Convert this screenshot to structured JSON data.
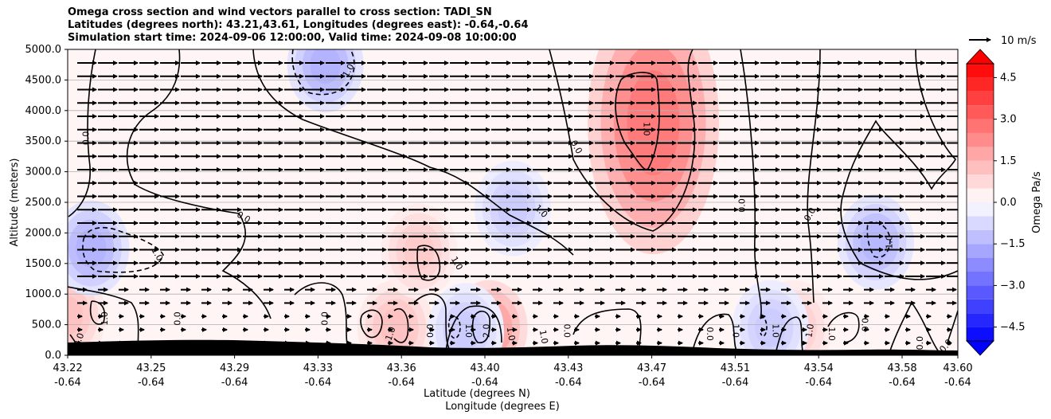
{
  "title_lines": [
    "Omega cross section and wind vectors parallel to cross section: TADI_SN",
    "Latitudes (degrees north): 43.21,43.61, Longitudes (degrees east): -0.64,-0.64",
    "Simulation start time: 2024-09-06 12:00:00, Valid time: 2024-09-08 10:00:00"
  ],
  "chart_data": {
    "type": "heatmap",
    "ylabel": "Altitude (meters)",
    "xlabel_line1": "Latitude (degrees N)",
    "xlabel_line2": "Longitude (degrees E)",
    "ylim": [
      0,
      5000
    ],
    "y_ticks": [
      "0.0",
      "500.0",
      "1000.0",
      "1500.0",
      "2000.0",
      "2500.0",
      "3000.0",
      "3500.0",
      "4000.0",
      "4500.0",
      "5000.0"
    ],
    "y_tick_values": [
      0,
      500,
      1000,
      1500,
      2000,
      2500,
      3000,
      3500,
      4000,
      4500,
      5000
    ],
    "x_ticks": [
      {
        "lat": "43.22",
        "lon": "-0.64"
      },
      {
        "lat": "43.25",
        "lon": "-0.64"
      },
      {
        "lat": "43.29",
        "lon": "-0.64"
      },
      {
        "lat": "43.33",
        "lon": "-0.64"
      },
      {
        "lat": "43.36",
        "lon": "-0.64"
      },
      {
        "lat": "43.40",
        "lon": "-0.64"
      },
      {
        "lat": "43.43",
        "lon": "-0.64"
      },
      {
        "lat": "43.47",
        "lon": "-0.64"
      },
      {
        "lat": "43.51",
        "lon": "-0.64"
      },
      {
        "lat": "43.54",
        "lon": "-0.64"
      },
      {
        "lat": "43.58",
        "lon": "-0.64"
      },
      {
        "lat": "43.60",
        "lon": "-0.64"
      }
    ],
    "grid": true,
    "colorbar": {
      "label": "Omega Pa/s",
      "ticks": [
        "4.5",
        "3.0",
        "1.5",
        "0.0",
        "−1.5",
        "−3.0",
        "−4.5"
      ],
      "tick_values": [
        4.5,
        3.0,
        1.5,
        0.0,
        -1.5,
        -3.0,
        -4.5
      ],
      "range": [
        -5,
        5
      ],
      "extend": "both",
      "positive_color": "#ff0000",
      "negative_color": "#0000ff"
    },
    "vector_key": {
      "label": "10 m/s"
    },
    "omega_features": [
      {
        "kind": "positive",
        "x_lat": 43.47,
        "alt": 3800,
        "peak": 2.6
      },
      {
        "kind": "positive",
        "x_lat": 43.4,
        "alt": 450,
        "peak": 2.0
      },
      {
        "kind": "positive",
        "x_lat": 43.36,
        "alt": 450,
        "peak": 1.2
      },
      {
        "kind": "positive",
        "x_lat": 43.22,
        "alt": 650,
        "peak": 1.2
      },
      {
        "kind": "positive",
        "x_lat": 43.37,
        "alt": 1700,
        "peak": 1.0
      },
      {
        "kind": "positive",
        "x_lat": 43.53,
        "alt": 450,
        "peak": 1.0
      },
      {
        "kind": "negative",
        "x_lat": 43.33,
        "alt": 4750,
        "peak": -1.5
      },
      {
        "kind": "negative",
        "x_lat": 43.23,
        "alt": 1750,
        "peak": -1.5
      },
      {
        "kind": "negative",
        "x_lat": 43.565,
        "alt": 1850,
        "peak": -1.4
      },
      {
        "kind": "negative",
        "x_lat": 43.41,
        "alt": 2400,
        "peak": -1.0
      },
      {
        "kind": "negative",
        "x_lat": 43.39,
        "alt": 400,
        "peak": -1.0
      },
      {
        "kind": "negative",
        "x_lat": 43.52,
        "alt": 450,
        "peak": -1.0
      }
    ],
    "contour_labels": [
      {
        "text": "0.0",
        "x_lat": 43.228,
        "alt": 3550,
        "angle": -90
      },
      {
        "text": "1.0",
        "x_lat": 43.34,
        "alt": 4650,
        "angle": -60
      },
      {
        "text": "0.0",
        "x_lat": 43.295,
        "alt": 2250,
        "angle": 30
      },
      {
        "text": "1.0",
        "x_lat": 43.258,
        "alt": 1650,
        "angle": 60
      },
      {
        "text": "1.0",
        "x_lat": 43.236,
        "alt": 600,
        "angle": -90
      },
      {
        "text": "0.0",
        "x_lat": 43.267,
        "alt": 600,
        "angle": -90
      },
      {
        "text": "0.0",
        "x_lat": 43.225,
        "alt": 250,
        "angle": -70
      },
      {
        "text": "0.0",
        "x_lat": 43.437,
        "alt": 3400,
        "angle": 60
      },
      {
        "text": "1.0",
        "x_lat": 43.422,
        "alt": 2350,
        "angle": 45
      },
      {
        "text": "1.0",
        "x_lat": 43.467,
        "alt": 3700,
        "angle": 90
      },
      {
        "text": "1.0",
        "x_lat": 43.386,
        "alt": 1500,
        "angle": 60
      },
      {
        "text": "0.0",
        "x_lat": 43.33,
        "alt": 600,
        "angle": -90
      },
      {
        "text": "1.0",
        "x_lat": 43.358,
        "alt": 350,
        "angle": -70
      },
      {
        "text": "0.0",
        "x_lat": 43.375,
        "alt": 400,
        "angle": -90
      },
      {
        "text": "2.0",
        "x_lat": 43.399,
        "alt": 400,
        "angle": -90
      },
      {
        "text": "1.0",
        "x_lat": 43.409,
        "alt": 350,
        "angle": 80
      },
      {
        "text": "1.0",
        "x_lat": 43.423,
        "alt": 300,
        "angle": 80
      },
      {
        "text": "1.0",
        "x_lat": 43.391,
        "alt": 400,
        "angle": 90
      },
      {
        "text": "0.0",
        "x_lat": 43.433,
        "alt": 400,
        "angle": 90
      },
      {
        "text": "0.0",
        "x_lat": 43.494,
        "alt": 350,
        "angle": 90
      },
      {
        "text": "1.0",
        "x_lat": 43.505,
        "alt": 400,
        "angle": 90
      },
      {
        "text": "1.0",
        "x_lat": 43.522,
        "alt": 400,
        "angle": 90
      },
      {
        "text": "0.0",
        "x_lat": 43.508,
        "alt": 2450,
        "angle": -90
      },
      {
        "text": "0.0",
        "x_lat": 43.537,
        "alt": 2300,
        "angle": -60
      },
      {
        "text": "1.0",
        "x_lat": 43.537,
        "alt": 400,
        "angle": -80
      },
      {
        "text": "1.0",
        "x_lat": 43.546,
        "alt": 350,
        "angle": 90
      },
      {
        "text": "0.0",
        "x_lat": 43.56,
        "alt": 500,
        "angle": 90
      },
      {
        "text": "1.0",
        "x_lat": 43.571,
        "alt": 1850,
        "angle": -90
      },
      {
        "text": "0.0",
        "x_lat": 43.584,
        "alt": 200,
        "angle": -90
      },
      {
        "text": "0.0",
        "x_lat": 43.595,
        "alt": 150,
        "angle": -50
      }
    ]
  }
}
